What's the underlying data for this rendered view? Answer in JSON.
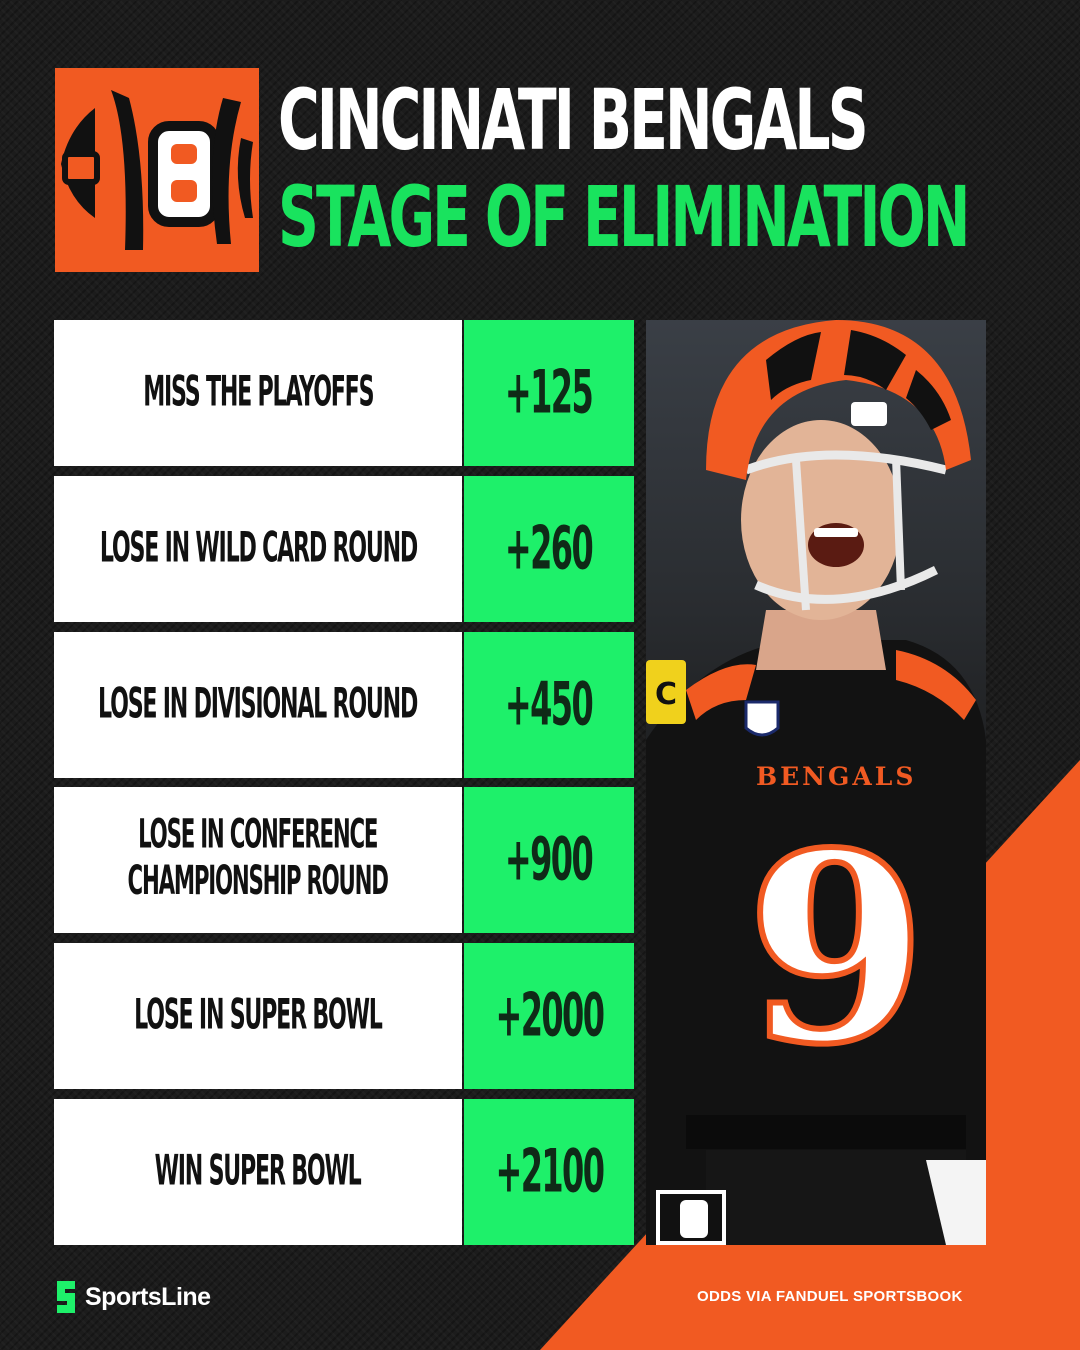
{
  "header": {
    "title_line_1": "CINCINATI BENGALS",
    "title_line_2": "STAGE OF ELIMINATION"
  },
  "odds_table": {
    "rows": [
      {
        "label": "MISS THE PLAYOFFS",
        "odds": "+125"
      },
      {
        "label": "LOSE IN WILD CARD ROUND",
        "odds": "+260"
      },
      {
        "label": "LOSE IN DIVISIONAL ROUND",
        "odds": "+450"
      },
      {
        "label": "LOSE IN CONFERENCE\nCHAMPIONSHIP ROUND",
        "odds": "+900"
      },
      {
        "label": "LOSE IN SUPER BOWL",
        "odds": "+2000"
      },
      {
        "label": "WIN SUPER BOWL",
        "odds": "+2100"
      }
    ]
  },
  "player_photo": {
    "jersey_team": "BENGALS",
    "jersey_number": "9",
    "captain_patch": "C"
  },
  "footer": {
    "brand_name": "SportsLine",
    "source_note": "ODDS VIA FANDUEL SPORTSBOOK"
  },
  "colors": {
    "background": "#1c1c1c",
    "accent_green": "#1ef06a",
    "title_green": "#19e35e",
    "bengals_orange": "#f15a22",
    "row_white": "#ffffff"
  },
  "icons": {
    "team_logo": "bengals-b-logo",
    "brand_logo": "sportsline-s-icon"
  }
}
